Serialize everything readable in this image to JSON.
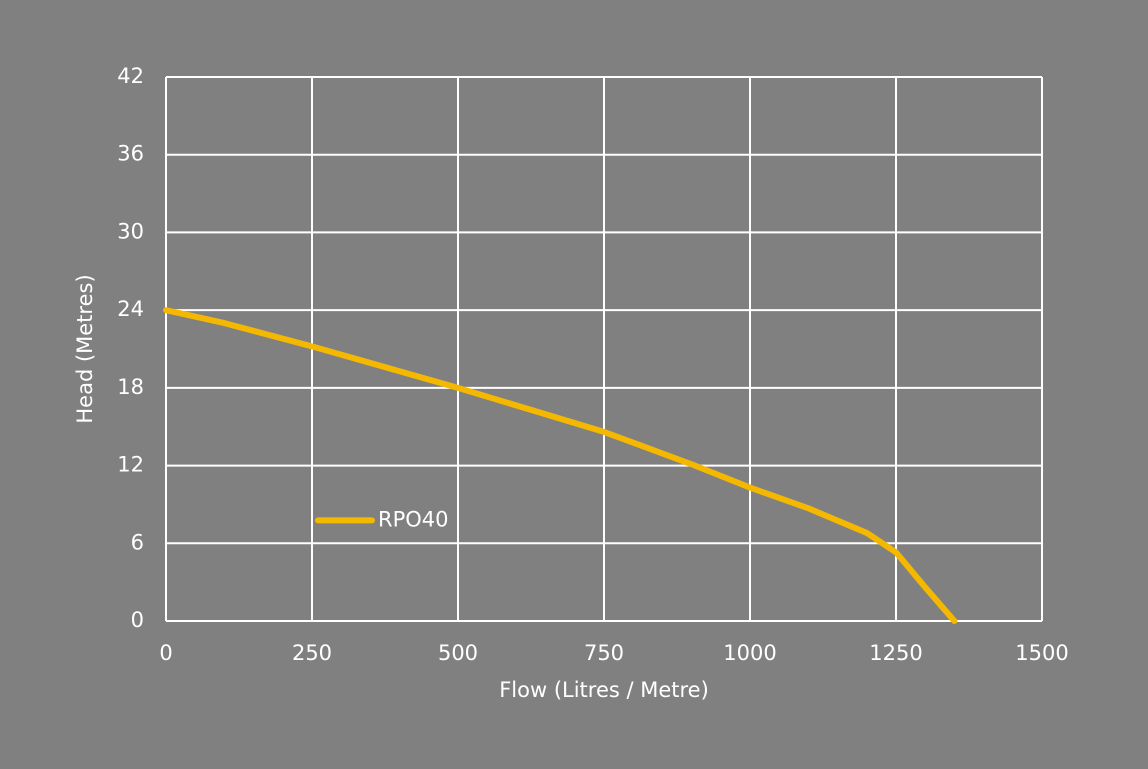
{
  "chart_data": {
    "type": "line",
    "x_label": "Flow (Litres / Metre)",
    "y_label": "Head (Metres)",
    "x": [
      0,
      100,
      250,
      500,
      750,
      900,
      1000,
      1100,
      1200,
      1250,
      1300,
      1350
    ],
    "series": [
      {
        "name": "RPO40",
        "color": "#f5b800",
        "values": [
          24,
          23,
          21.2,
          18.0,
          14.6,
          12.1,
          10.3,
          8.7,
          6.8,
          5.3,
          2.6,
          0
        ]
      }
    ],
    "xlim": [
      0,
      1500
    ],
    "xticks": [
      0,
      250,
      500,
      750,
      1000,
      1250,
      1500
    ],
    "ylim": [
      0,
      42
    ],
    "yticks": [
      0,
      6,
      12,
      18,
      24,
      30,
      36,
      42
    ],
    "grid": true,
    "legend": "lower left"
  }
}
